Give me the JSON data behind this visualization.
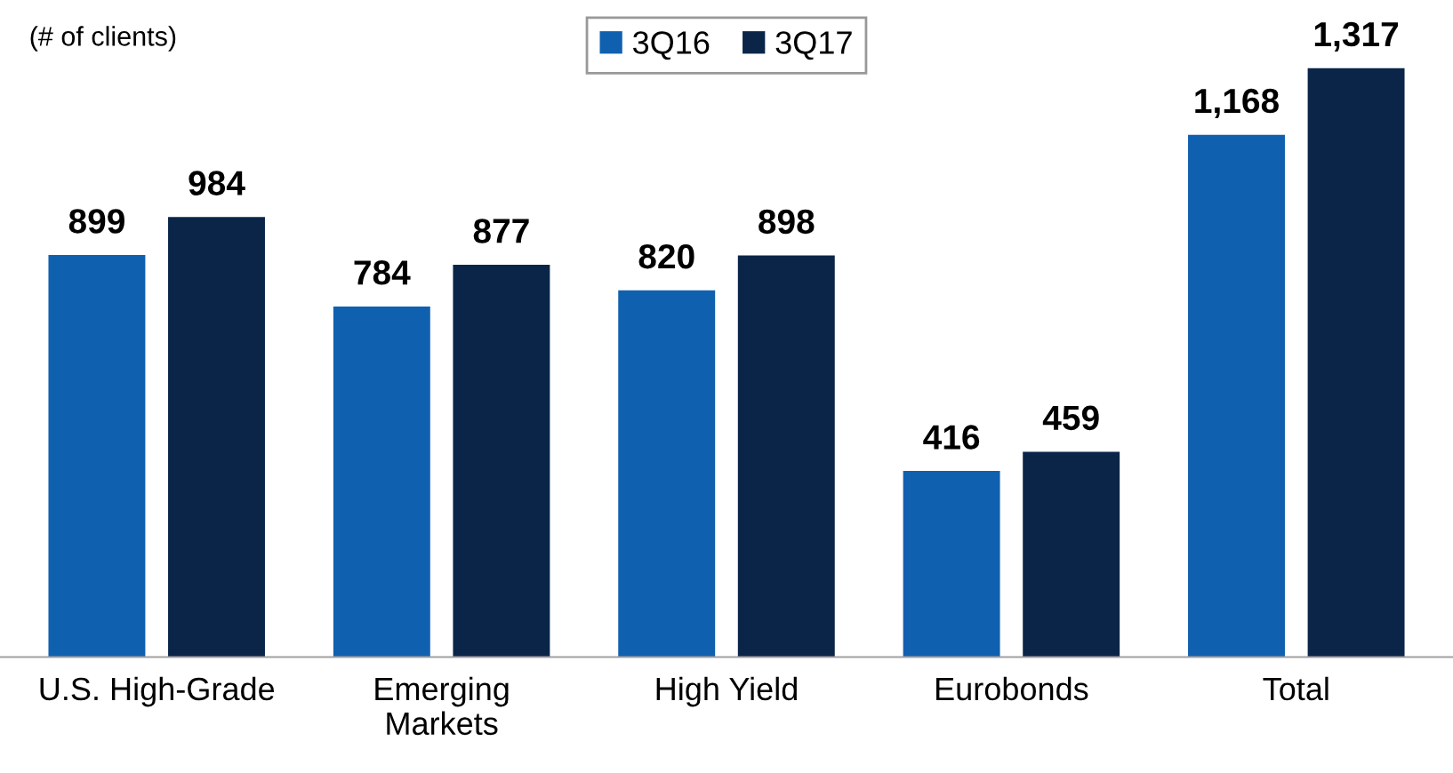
{
  "chart_data": {
    "type": "bar",
    "categories": [
      "U.S. High-Grade",
      "Emerging\nMarkets",
      "High Yield",
      "Eurobonds",
      "Total"
    ],
    "series": [
      {
        "name": "3Q16",
        "color": "#1060b0",
        "values": [
          899,
          784,
          820,
          416,
          1168
        ],
        "value_labels": [
          "899",
          "784",
          "820",
          "416",
          "1,168"
        ]
      },
      {
        "name": "3Q17",
        "color": "#0a2548",
        "values": [
          984,
          877,
          898,
          459,
          1317
        ],
        "value_labels": [
          "984",
          "877",
          "898",
          "459",
          "1,317"
        ]
      }
    ],
    "annotations": [
      "(# of clients)"
    ],
    "legend": "top",
    "grid": false
  }
}
